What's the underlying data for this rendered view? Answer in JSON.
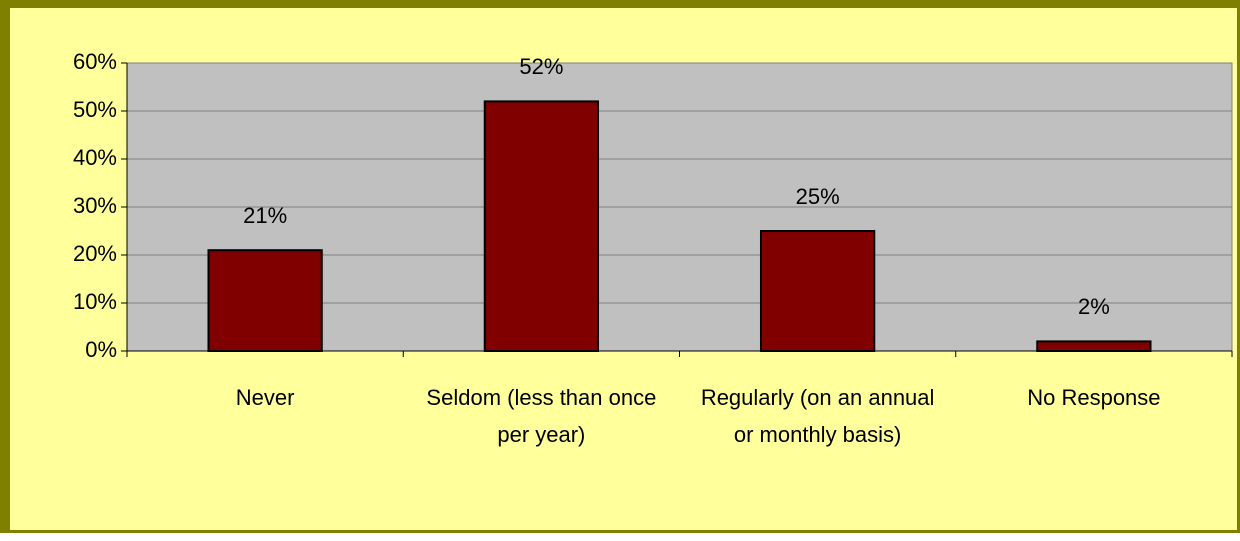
{
  "chart_data": {
    "type": "bar",
    "categories": [
      "Never",
      "Seldom (less than once per year)",
      "Regularly (on an annual or monthly basis)",
      "No Response"
    ],
    "values": [
      21,
      52,
      25,
      2
    ],
    "value_labels": [
      "21%",
      "52%",
      "25%",
      "2%"
    ],
    "color": "#800000",
    "ylim": [
      0,
      60
    ],
    "yticks": [
      {
        "value": 0,
        "label": "0%"
      },
      {
        "value": 10,
        "label": "10%"
      },
      {
        "value": 20,
        "label": "20%"
      },
      {
        "value": 30,
        "label": "30%"
      },
      {
        "value": 40,
        "label": "40%"
      },
      {
        "value": 50,
        "label": "50%"
      },
      {
        "value": 60,
        "label": "60%"
      }
    ],
    "grid": true
  }
}
